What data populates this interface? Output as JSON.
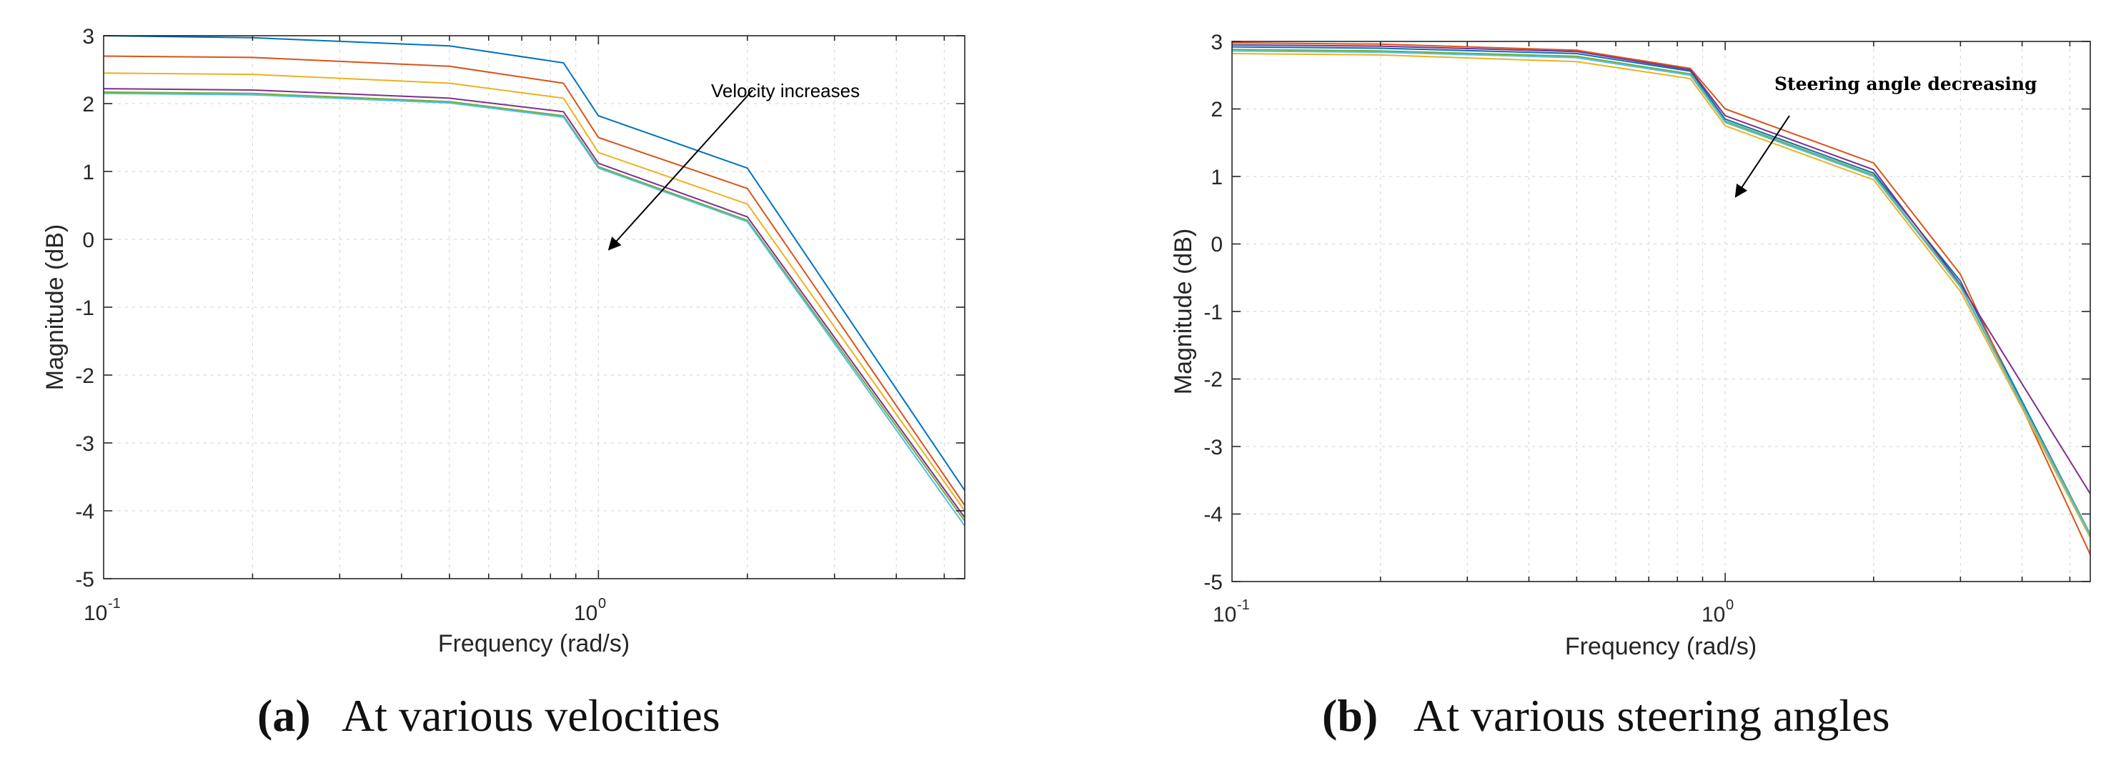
{
  "chart_data": [
    {
      "type": "line",
      "panel_label": "(a)",
      "caption": "At various velocities",
      "xlabel": "Frequency (rad/s)",
      "ylabel": "Magnitude (dB)",
      "xscale": "log",
      "xlim": [
        0.1,
        5.5
      ],
      "ylim": [
        -5,
        3
      ],
      "grid": true,
      "yticks": [
        3,
        2,
        1,
        0,
        -1,
        -2,
        -3,
        -4,
        -5
      ],
      "ytick_labels": [
        "3",
        "2",
        "1",
        "0",
        "-1",
        "-2",
        "-3",
        "-4",
        "-5"
      ],
      "xtick_labels": [
        {
          "value": 0.1,
          "base": "10",
          "exp": "-1"
        },
        {
          "value": 1,
          "base": "10",
          "exp": "0"
        }
      ],
      "x": [
        0.1,
        0.2,
        0.5,
        0.85,
        1.0,
        2.0,
        5.5
      ],
      "series": [
        {
          "name": "series-1",
          "color": "#0072BD",
          "values": [
            3.0,
            2.97,
            2.85,
            2.6,
            1.82,
            1.05,
            -3.7
          ]
        },
        {
          "name": "series-2",
          "color": "#D95319",
          "values": [
            2.7,
            2.68,
            2.55,
            2.3,
            1.5,
            0.75,
            -3.92
          ]
        },
        {
          "name": "series-3",
          "color": "#EDB120",
          "values": [
            2.45,
            2.43,
            2.3,
            2.08,
            1.28,
            0.52,
            -4.0
          ]
        },
        {
          "name": "series-4",
          "color": "#7E2F8E",
          "values": [
            2.22,
            2.2,
            2.08,
            1.88,
            1.12,
            0.33,
            -4.1
          ]
        },
        {
          "name": "series-5",
          "color": "#77AC30",
          "values": [
            2.17,
            2.15,
            2.03,
            1.82,
            1.07,
            0.28,
            -4.15
          ]
        },
        {
          "name": "series-6",
          "color": "#4DBEEE",
          "values": [
            2.15,
            2.13,
            2.01,
            1.8,
            1.05,
            0.26,
            -4.22
          ]
        }
      ],
      "annotation": {
        "text": "Velocity increases",
        "arrow_from": [
          2.05,
          2.2
        ],
        "arrow_to": [
          1.05,
          -0.15
        ]
      }
    },
    {
      "type": "line",
      "panel_label": "(b)",
      "caption": "At various steering angles",
      "xlabel": "Frequency (rad/s)",
      "ylabel": "Magnitude (dB)",
      "xscale": "log",
      "xlim": [
        0.1,
        5.5
      ],
      "ylim": [
        -5,
        3
      ],
      "grid": true,
      "yticks": [
        3,
        2,
        1,
        0,
        -1,
        -2,
        -3,
        -4,
        -5
      ],
      "ytick_labels": [
        "3",
        "2",
        "1",
        "0",
        "-1",
        "-2",
        "-3",
        "-4",
        "-5"
      ],
      "xtick_labels": [
        {
          "value": 0.1,
          "base": "10",
          "exp": "-1"
        },
        {
          "value": 1,
          "base": "10",
          "exp": "0"
        }
      ],
      "x": [
        0.1,
        0.2,
        0.5,
        0.85,
        1.0,
        2.0,
        3.0,
        5.5
      ],
      "series": [
        {
          "name": "series-1",
          "color": "#0072BD",
          "values": [
            2.92,
            2.9,
            2.82,
            2.56,
            1.85,
            1.05,
            -0.55,
            -4.3
          ]
        },
        {
          "name": "series-2",
          "color": "#D95319",
          "values": [
            2.98,
            2.96,
            2.87,
            2.6,
            2.0,
            1.2,
            -0.45,
            -4.6
          ]
        },
        {
          "name": "series-3",
          "color": "#EDB120",
          "values": [
            2.82,
            2.8,
            2.7,
            2.45,
            1.75,
            0.95,
            -0.7,
            -4.35
          ]
        },
        {
          "name": "series-4",
          "color": "#7E2F8E",
          "values": [
            2.95,
            2.93,
            2.85,
            2.58,
            1.9,
            1.1,
            -0.6,
            -3.7
          ]
        },
        {
          "name": "series-5",
          "color": "#77AC30",
          "values": [
            2.88,
            2.86,
            2.78,
            2.52,
            1.82,
            1.02,
            -0.62,
            -4.3
          ]
        },
        {
          "name": "series-6",
          "color": "#4DBEEE",
          "values": [
            2.86,
            2.84,
            2.76,
            2.5,
            1.8,
            1.0,
            -0.64,
            -4.32
          ]
        }
      ],
      "annotation": {
        "text": "Steering angle decreasing",
        "arrow_from": [
          1.35,
          1.9
        ],
        "arrow_to": [
          1.05,
          0.7
        ]
      }
    }
  ]
}
